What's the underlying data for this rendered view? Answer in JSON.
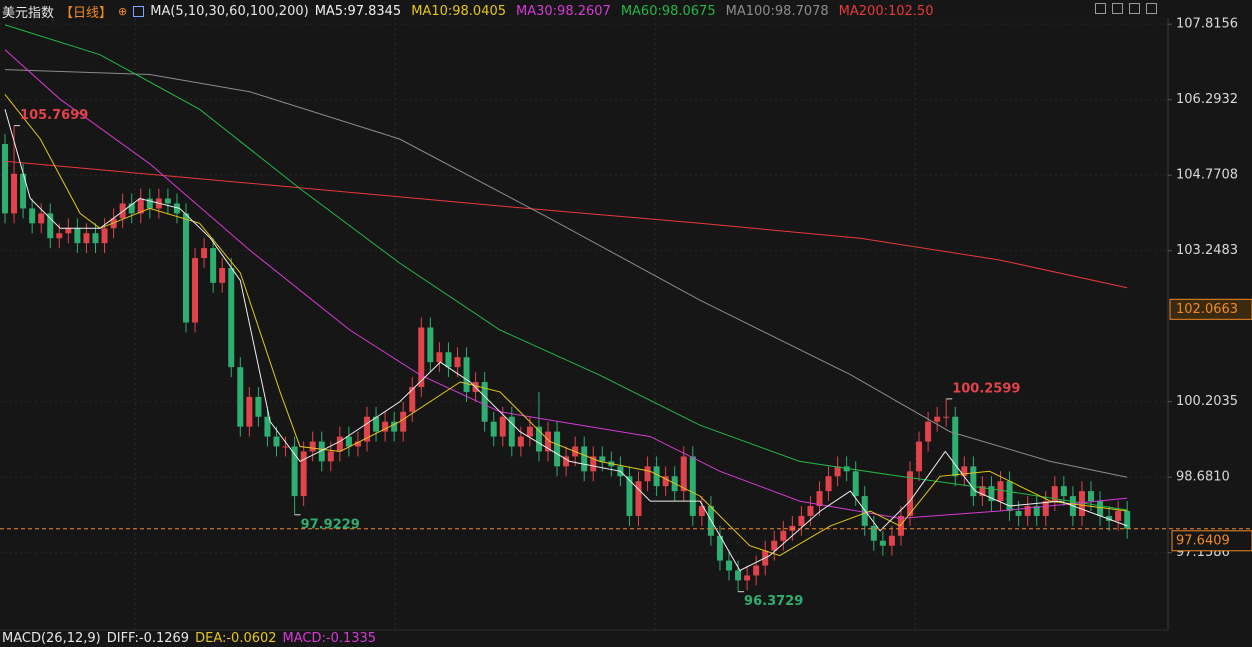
{
  "chart_data": {
    "type": "candlestick",
    "title": "美元指数",
    "period": "【日线】",
    "ma_title": "MA(5,10,30,60,100,200)",
    "up_color": "#e0434a",
    "down_color": "#2eae70",
    "ylim": [
      95.6,
      107.94
    ],
    "yticks": [
      107.8156,
      106.2932,
      104.7708,
      103.2483,
      100.2035,
      {
        "value": 98.681,
        "label": "98.6810"
      },
      97.1586
    ],
    "grid": true,
    "open": [
      105.4,
      104.0,
      104.8,
      104.1,
      103.8,
      104.0,
      103.5,
      103.6,
      103.7,
      103.4,
      103.6,
      103.4,
      103.7,
      103.9,
      104.2,
      104.0,
      104.3,
      104.1,
      104.3,
      104.2,
      104.0,
      101.8,
      103.1,
      103.3,
      102.6,
      102.9,
      100.9,
      99.7,
      100.3,
      99.9,
      99.5,
      99.3,
      99.3,
      98.3,
      99.2,
      99.4,
      99.0,
      99.2,
      99.5,
      99.3,
      99.4,
      99.9,
      99.6,
      99.8,
      99.6,
      100.0,
      100.5,
      101.7,
      101.0,
      101.2,
      100.9,
      101.1,
      100.4,
      100.6,
      99.8,
      99.5,
      99.9,
      99.3,
      99.5,
      99.7,
      99.2,
      99.6,
      98.9,
      99.1,
      99.3,
      98.8,
      99.1,
      99.0,
      98.9,
      98.7,
      97.9,
      98.6,
      98.9,
      98.5,
      98.7,
      98.4,
      99.1,
      97.9,
      98.1,
      97.5,
      97.0,
      96.8,
      96.6,
      96.7,
      96.9,
      97.2,
      97.4,
      97.6,
      97.7,
      97.9,
      98.1,
      98.4,
      98.7,
      98.9,
      98.8,
      98.3,
      97.7,
      97.4,
      97.3,
      97.5,
      97.9,
      98.8,
      99.4,
      99.8,
      99.9,
      99.9,
      98.7,
      98.9,
      98.3,
      98.5,
      98.2,
      98.6,
      98.0,
      97.9,
      98.1,
      97.9,
      98.2,
      98.5,
      98.3,
      97.9,
      98.4,
      98.2,
      97.9,
      97.8,
      98.0
    ],
    "high": [
      105.6,
      105.7699,
      105.0,
      104.3,
      104.2,
      104.2,
      103.8,
      103.9,
      103.9,
      103.8,
      103.8,
      103.9,
      104.1,
      104.4,
      104.4,
      104.5,
      104.5,
      104.5,
      104.5,
      104.4,
      104.2,
      103.3,
      103.5,
      103.5,
      103.1,
      103.1,
      101.1,
      100.5,
      100.5,
      100.1,
      99.7,
      99.5,
      99.5,
      99.4,
      99.6,
      99.6,
      99.4,
      99.7,
      99.7,
      99.6,
      100.1,
      100.1,
      100.0,
      100.0,
      100.2,
      100.7,
      101.9,
      101.9,
      101.4,
      101.4,
      101.3,
      101.3,
      100.8,
      100.8,
      100.0,
      100.1,
      100.1,
      99.7,
      99.9,
      100.4,
      99.8,
      99.8,
      99.3,
      99.5,
      99.5,
      99.3,
      99.3,
      99.2,
      99.1,
      98.9,
      98.8,
      99.1,
      99.1,
      98.9,
      98.9,
      99.3,
      99.3,
      98.3,
      98.3,
      97.7,
      97.2,
      97.0,
      96.9,
      97.1,
      97.4,
      97.6,
      97.8,
      97.9,
      98.1,
      98.3,
      98.6,
      98.9,
      99.1,
      99.1,
      99.0,
      98.5,
      97.9,
      97.6,
      97.7,
      98.1,
      99.0,
      99.6,
      100.0,
      100.1,
      100.2599,
      100.1,
      99.1,
      99.1,
      98.7,
      98.7,
      98.8,
      98.8,
      98.2,
      98.3,
      98.3,
      98.4,
      98.7,
      98.7,
      98.5,
      98.6,
      98.6,
      98.4,
      98.1,
      98.2,
      98.2
    ],
    "low": [
      103.8,
      103.8,
      103.9,
      103.6,
      103.6,
      103.3,
      103.3,
      103.4,
      103.2,
      103.2,
      103.2,
      103.2,
      103.5,
      103.7,
      103.8,
      103.8,
      103.9,
      103.9,
      104.0,
      103.8,
      101.6,
      101.6,
      102.9,
      102.4,
      102.4,
      100.7,
      99.5,
      99.5,
      99.7,
      99.3,
      99.1,
      99.1,
      97.9229,
      98.1,
      99.0,
      98.8,
      98.8,
      99.0,
      99.1,
      99.1,
      99.2,
      99.4,
      99.4,
      99.4,
      99.4,
      99.8,
      100.3,
      100.8,
      100.8,
      100.7,
      100.7,
      100.2,
      100.2,
      99.6,
      99.3,
      99.3,
      99.1,
      99.1,
      99.3,
      99.0,
      99.0,
      98.7,
      98.7,
      98.9,
      98.6,
      98.6,
      98.8,
      98.7,
      98.5,
      97.7,
      97.7,
      98.4,
      98.3,
      98.3,
      98.2,
      98.2,
      97.7,
      97.7,
      97.3,
      96.8,
      96.6,
      96.3729,
      96.4,
      96.5,
      96.7,
      97.0,
      97.2,
      97.4,
      97.5,
      97.7,
      97.9,
      98.2,
      98.5,
      98.6,
      98.1,
      97.5,
      97.2,
      97.1,
      97.1,
      97.3,
      97.7,
      98.6,
      99.2,
      99.6,
      99.7,
      98.5,
      98.5,
      98.1,
      98.1,
      98.0,
      98.0,
      97.8,
      97.7,
      97.7,
      97.7,
      97.7,
      98.0,
      98.1,
      97.7,
      97.7,
      98.0,
      97.7,
      97.6,
      97.6,
      97.44
    ],
    "close": [
      104.0,
      104.8,
      104.1,
      103.8,
      104.0,
      103.5,
      103.6,
      103.7,
      103.4,
      103.6,
      103.4,
      103.7,
      103.9,
      104.2,
      104.0,
      104.3,
      104.1,
      104.3,
      104.2,
      104.0,
      101.8,
      103.1,
      103.3,
      102.6,
      102.9,
      100.9,
      99.7,
      100.3,
      99.9,
      99.5,
      99.3,
      99.3,
      98.3,
      99.2,
      99.4,
      99.0,
      99.2,
      99.5,
      99.3,
      99.4,
      99.9,
      99.6,
      99.8,
      99.6,
      100.0,
      100.5,
      101.7,
      101.0,
      101.2,
      100.9,
      101.1,
      100.4,
      100.6,
      99.8,
      99.5,
      99.9,
      99.3,
      99.5,
      99.7,
      99.2,
      99.6,
      98.9,
      99.1,
      99.3,
      98.8,
      99.1,
      99.0,
      98.9,
      98.7,
      97.9,
      98.6,
      98.9,
      98.5,
      98.7,
      98.4,
      99.1,
      97.9,
      98.1,
      97.5,
      97.0,
      96.8,
      96.6,
      96.7,
      96.9,
      97.2,
      97.4,
      97.6,
      97.7,
      97.9,
      98.1,
      98.4,
      98.7,
      98.9,
      98.8,
      98.3,
      97.7,
      97.4,
      97.3,
      97.5,
      97.9,
      98.8,
      99.4,
      99.8,
      99.9,
      99.9,
      98.7,
      98.9,
      98.3,
      98.5,
      98.2,
      98.6,
      98.0,
      97.9,
      98.1,
      97.9,
      98.2,
      98.5,
      98.3,
      97.9,
      98.4,
      98.2,
      97.9,
      97.8,
      98.0,
      97.64
    ],
    "series": [
      {
        "name": "MA200",
        "label": "MA200:102.50",
        "color": "#e8393a",
        "x": [
          0,
          21.5,
          54.7,
          76.8,
          94.5,
          109.9,
          124
        ],
        "values": [
          105.05,
          104.7,
          104.15,
          103.8,
          103.5,
          103.06,
          102.5
        ]
      },
      {
        "name": "MA100",
        "label": "MA100:98.7078",
        "color": "#8c8c8c",
        "x": [
          0,
          16,
          27.1,
          43.6,
          60.2,
          76.8,
          93.4,
          104.4,
          115.5,
          124
        ],
        "values": [
          106.9,
          106.8,
          106.45,
          105.5,
          103.9,
          102.25,
          100.75,
          99.6,
          99.0,
          98.68
        ]
      },
      {
        "name": "MA60",
        "label": "MA60:98.0675",
        "color": "#22b845",
        "x": [
          0,
          10.5,
          21.5,
          32.6,
          43.6,
          54.7,
          65.7,
          76.8,
          87.8,
          98.9,
          109.9,
          124
        ],
        "values": [
          107.8,
          107.2,
          106.1,
          104.5,
          103.0,
          101.65,
          100.74,
          99.73,
          99.0,
          98.7,
          98.42,
          98.02
        ]
      },
      {
        "name": "MA30",
        "label": "MA30:98.2607",
        "color": "#d63ad6",
        "x": [
          0,
          6.1,
          16,
          27.1,
          38.1,
          45.9,
          54.7,
          61.3,
          71.3,
          79,
          87.8,
          98.9,
          109.9,
          124
        ],
        "values": [
          107.3,
          106.3,
          105.0,
          103.25,
          101.65,
          100.74,
          100.0,
          99.8,
          99.5,
          98.8,
          98.2,
          97.85,
          98.0,
          98.26
        ]
      },
      {
        "name": "MA10",
        "label": "MA10:98.0405",
        "color": "#e6c619",
        "x": [
          0,
          3.9,
          8.3,
          10.5,
          16,
          21.5,
          26,
          30.4,
          32.6,
          37,
          43.6,
          50.3,
          54.7,
          60.2,
          65.7,
          71.3,
          76.8,
          82.3,
          85.6,
          91.2,
          95.6,
          98.9,
          103.3,
          108.8,
          115.5,
          124
        ],
        "values": [
          106.4,
          105.5,
          104.0,
          103.7,
          104.1,
          103.8,
          102.8,
          100.4,
          99.3,
          99.2,
          99.8,
          100.6,
          100.4,
          99.4,
          99.0,
          98.8,
          98.3,
          97.3,
          97.1,
          97.7,
          98.0,
          97.7,
          98.7,
          98.8,
          98.2,
          98.0
        ]
      },
      {
        "name": "MA5",
        "label": "MA5:97.8345",
        "color": "#f0f0f0",
        "x": [
          0,
          2.8,
          6.1,
          10.5,
          14.9,
          19.3,
          22.7,
          26,
          29.3,
          32.6,
          37,
          43.6,
          48.1,
          51.4,
          56.9,
          62.4,
          68,
          71.3,
          76.8,
          81.2,
          84.5,
          90.1,
          93.4,
          96.7,
          100,
          103.9,
          107.2,
          111,
          116.6,
          124
        ],
        "values": [
          106.1,
          104.3,
          103.7,
          103.7,
          104.3,
          104.1,
          103.5,
          102.65,
          99.8,
          99.0,
          99.4,
          100.2,
          101.0,
          100.6,
          99.6,
          99.0,
          98.8,
          98.2,
          98.2,
          96.8,
          97.1,
          98.0,
          98.4,
          97.6,
          98.2,
          99.2,
          98.4,
          98.1,
          98.2,
          97.7
        ]
      }
    ],
    "annotations": [
      {
        "x": 1,
        "value": 105.7699,
        "at": "high"
      },
      {
        "x": 32,
        "value": 97.9229,
        "at": "low"
      },
      {
        "x": 81,
        "value": 96.3729,
        "at": "low"
      },
      {
        "x": 104,
        "value": 100.2599,
        "at": "high"
      }
    ],
    "cursor_price": 102.0663,
    "current_price": 97.6409,
    "indicator": [
      {
        "text": "MACD(26,12,9)",
        "color": "#e6e6e6"
      },
      {
        "text": "DIFF:-0.1269",
        "color": "#e6e6e6"
      },
      {
        "text": "DEA:-0.0602",
        "color": "#e6c619"
      },
      {
        "text": "MACD:-0.1335",
        "color": "#d63ad6"
      }
    ]
  }
}
